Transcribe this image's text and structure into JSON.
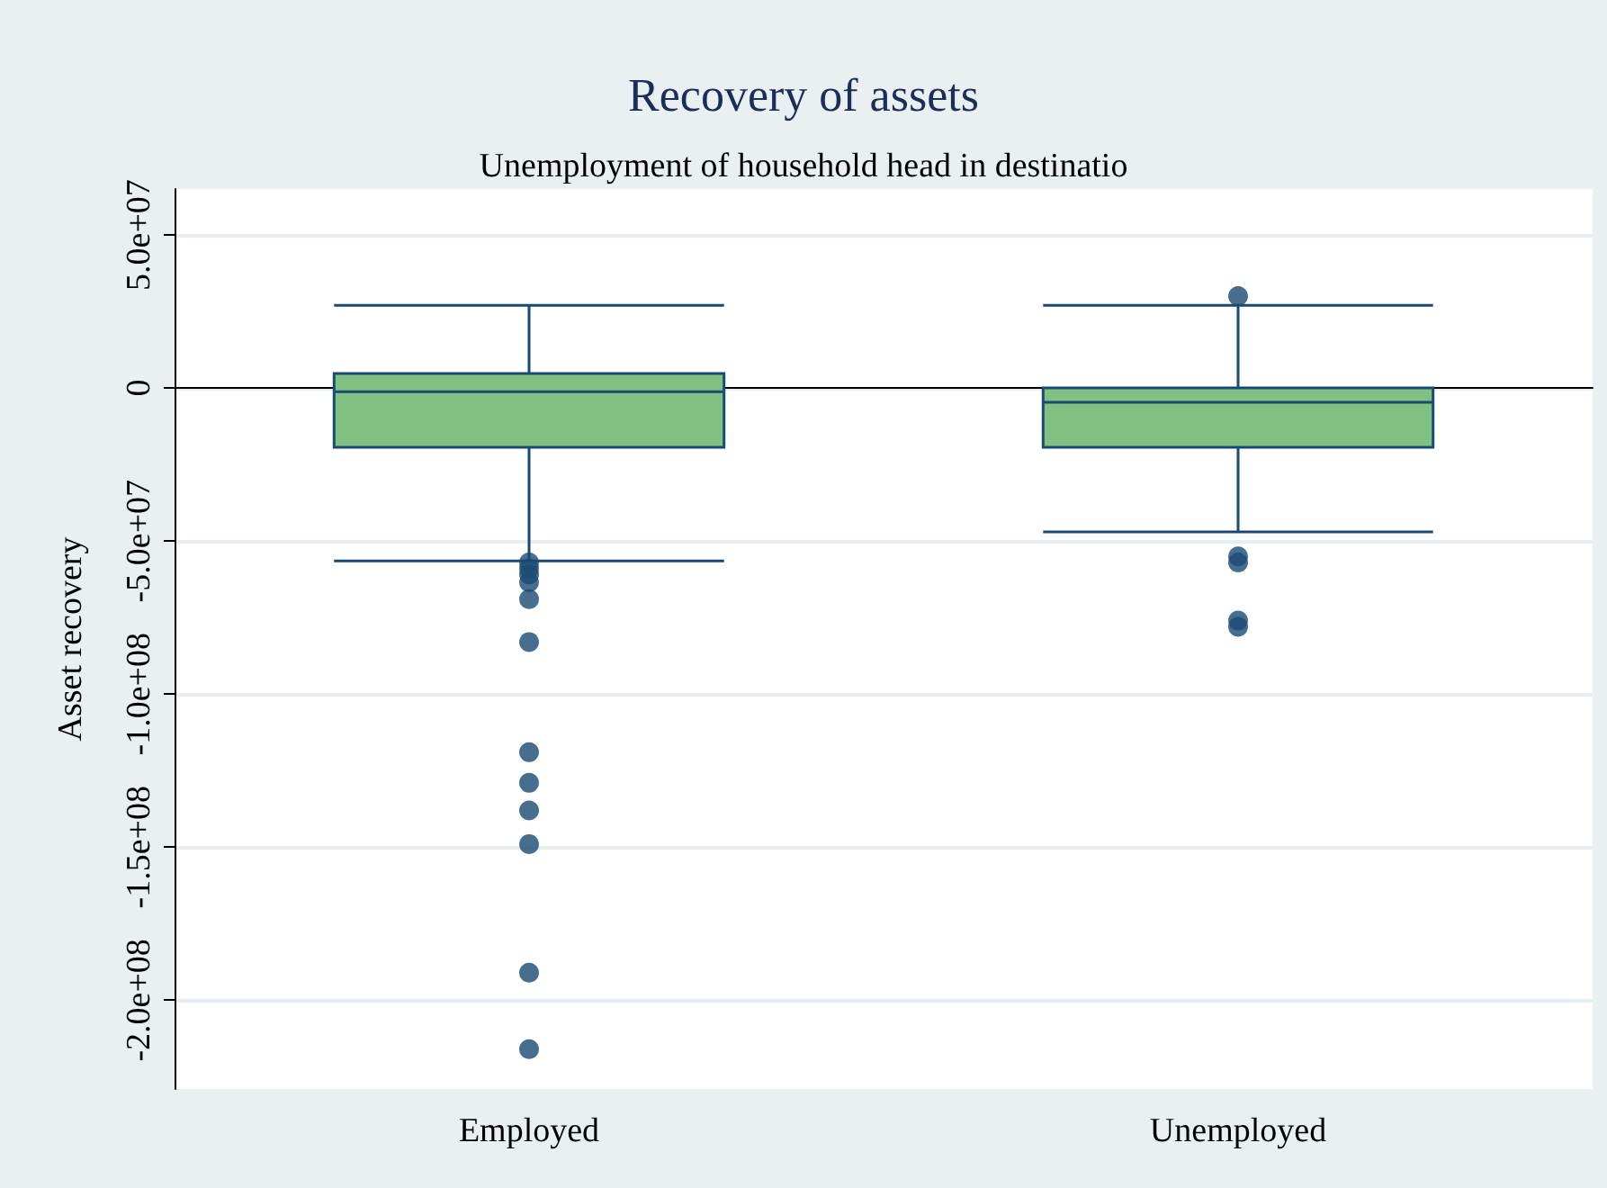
{
  "chart_data": {
    "type": "box",
    "title": "Recovery of assets",
    "subtitle": "Unemployment of household head in destinatio",
    "ylabel": "Asset recovery",
    "categories": [
      "Employed",
      "Unemployed"
    ],
    "boxes": [
      {
        "low": -56500000,
        "q1": -19400000,
        "median": -1200000,
        "q3": 4700000,
        "high": 27000000,
        "outliers": [
          -57000000,
          -59000000,
          -61000000,
          -63500000,
          -69000000,
          -83000000,
          -119000000,
          -129000000,
          -138000000,
          -149000000,
          -191000000,
          -216000000
        ]
      },
      {
        "low": -47000000,
        "q1": -19400000,
        "median": -4700000,
        "q3": 0,
        "high": 27000000,
        "outliers": [
          30000000,
          -55000000,
          -57000000,
          -76000000,
          -78000000
        ]
      }
    ],
    "color": "#80c080",
    "ylim": [
      -229000000,
      65000000
    ],
    "yticks": [
      {
        "value": 50000000,
        "label": "5.0e+07"
      },
      0,
      {
        "value": -50000000,
        "label": "-5.0e+07"
      },
      {
        "value": -100000000,
        "label": "-1.0e+08"
      },
      {
        "value": -150000000,
        "label": "-1.5e+08"
      },
      {
        "value": -200000000,
        "label": "-2.0e+08"
      }
    ],
    "grid": "y"
  }
}
